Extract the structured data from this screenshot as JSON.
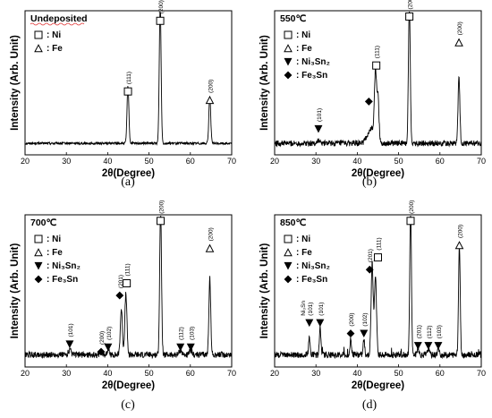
{
  "chart_data": [
    {
      "type": "line",
      "panel_label": "(a)",
      "sample": "Undeposited",
      "xlabel": "2θ(Degree)",
      "ylabel": "Intensity (Arb. Unit)",
      "xlim": [
        20,
        70
      ],
      "xticks": [
        20,
        30,
        40,
        50,
        60,
        70
      ],
      "legend": [
        {
          "symbol": "square",
          "label": ": Ni"
        },
        {
          "symbol": "triangle",
          "label": ": Fe"
        }
      ],
      "baseline": 0.08,
      "peaks": [
        {
          "x": 44.9,
          "y": 0.4,
          "w": 0.22
        },
        {
          "x": 52.7,
          "y": 0.97,
          "w": 0.22
        },
        {
          "x": 64.7,
          "y": 0.33,
          "w": 0.22
        }
      ],
      "markers": [
        {
          "x": 44.9,
          "y": 0.44,
          "symbol": "square",
          "hkl": "(111)"
        },
        {
          "x": 52.7,
          "y": 0.93,
          "symbol": "square",
          "hkl": "(200)"
        },
        {
          "x": 64.7,
          "y": 0.38,
          "symbol": "triangle",
          "hkl": "(200)"
        }
      ]
    },
    {
      "type": "line",
      "panel_label": "(b)",
      "sample": "550℃",
      "xlabel": "2θ(Degree)",
      "ylabel": "Intensity (Arb. Unit)",
      "xlim": [
        20,
        70
      ],
      "xticks": [
        20,
        30,
        40,
        50,
        60,
        70
      ],
      "legend": [
        {
          "symbol": "square",
          "label": ": Ni"
        },
        {
          "symbol": "triangle",
          "label": ": Fe"
        },
        {
          "symbol": "down-triangle",
          "label": ": Ni₃Sn₂"
        },
        {
          "symbol": "diamond",
          "label": ": Fe₃Sn"
        }
      ],
      "baseline": 0.08,
      "peaks": [
        {
          "x": 30.6,
          "y": 0.02,
          "w": 0.3
        },
        {
          "x": 43.4,
          "y": 0.1,
          "w": 0.9
        },
        {
          "x": 44.4,
          "y": 0.45,
          "w": 0.25
        },
        {
          "x": 45.0,
          "y": 0.3,
          "w": 0.25
        },
        {
          "x": 52.6,
          "y": 0.97,
          "w": 0.22
        },
        {
          "x": 64.6,
          "y": 0.45,
          "w": 0.22
        }
      ],
      "markers": [
        {
          "x": 30.6,
          "y": 0.18,
          "symbol": "down-triangle",
          "hkl": "(101)"
        },
        {
          "x": 42.8,
          "y": 0.37,
          "symbol": "diamond",
          "hkl": ""
        },
        {
          "x": 44.6,
          "y": 0.62,
          "symbol": "square",
          "hkl": "(111)"
        },
        {
          "x": 52.6,
          "y": 0.96,
          "symbol": "square",
          "hkl": "(200)"
        },
        {
          "x": 64.6,
          "y": 0.78,
          "symbol": "triangle",
          "hkl": "(200)"
        }
      ]
    },
    {
      "type": "line",
      "panel_label": "(c)",
      "sample": "700℃",
      "xlabel": "2θ(Degree)",
      "ylabel": "Intensity (Arb. Unit)",
      "xlim": [
        20,
        70
      ],
      "xticks": [
        20,
        30,
        40,
        50,
        60,
        70
      ],
      "legend": [
        {
          "symbol": "square",
          "label": ": Ni"
        },
        {
          "symbol": "triangle",
          "label": ": Fe"
        },
        {
          "symbol": "down-triangle",
          "label": ": Ni₃Sn₂"
        },
        {
          "symbol": "diamond",
          "label": ": Fe₃Sn"
        }
      ],
      "baseline": 0.08,
      "peaks": [
        {
          "x": 30.8,
          "y": 0.03,
          "w": 0.3
        },
        {
          "x": 38.4,
          "y": 0.02,
          "w": 0.3
        },
        {
          "x": 40.1,
          "y": 0.03,
          "w": 0.3
        },
        {
          "x": 43.3,
          "y": 0.3,
          "w": 0.25
        },
        {
          "x": 44.4,
          "y": 0.4,
          "w": 0.25
        },
        {
          "x": 52.8,
          "y": 0.97,
          "w": 0.22
        },
        {
          "x": 57.6,
          "y": 0.03,
          "w": 0.3
        },
        {
          "x": 60.1,
          "y": 0.03,
          "w": 0.3
        },
        {
          "x": 64.7,
          "y": 0.5,
          "w": 0.22
        }
      ],
      "markers": [
        {
          "x": 30.8,
          "y": 0.15,
          "symbol": "down-triangle",
          "hkl": "(101)"
        },
        {
          "x": 38.4,
          "y": 0.1,
          "symbol": "diamond",
          "hkl": "(200)"
        },
        {
          "x": 40.1,
          "y": 0.13,
          "symbol": "down-triangle",
          "hkl": "(102)"
        },
        {
          "x": 42.9,
          "y": 0.47,
          "symbol": "diamond",
          "hkl": "(201)"
        },
        {
          "x": 44.6,
          "y": 0.55,
          "symbol": "square",
          "hkl": "(111)"
        },
        {
          "x": 52.8,
          "y": 0.96,
          "symbol": "square",
          "hkl": "(200)"
        },
        {
          "x": 57.6,
          "y": 0.13,
          "symbol": "down-triangle",
          "hkl": "(112)"
        },
        {
          "x": 60.1,
          "y": 0.13,
          "symbol": "down-triangle",
          "hkl": "(103)"
        },
        {
          "x": 64.7,
          "y": 0.78,
          "symbol": "triangle",
          "hkl": "(200)"
        }
      ]
    },
    {
      "type": "line",
      "panel_label": "(d)",
      "sample": "850℃",
      "xlabel": "2θ(Degree)",
      "ylabel": "Intensity (Arb. Unit)",
      "xlim": [
        20,
        70
      ],
      "xticks": [
        20,
        30,
        40,
        50,
        60,
        70
      ],
      "legend": [
        {
          "symbol": "square",
          "label": ": Ni"
        },
        {
          "symbol": "triangle",
          "label": ": Fe"
        },
        {
          "symbol": "down-triangle",
          "label": ": Ni₃Sn₂"
        },
        {
          "symbol": "diamond",
          "label": ": Fe₃Sn"
        }
      ],
      "baseline": 0.08,
      "peaks": [
        {
          "x": 28.4,
          "y": 0.12,
          "w": 0.18
        },
        {
          "x": 31.0,
          "y": 0.18,
          "w": 0.18
        },
        {
          "x": 38.4,
          "y": 0.1,
          "w": 0.18
        },
        {
          "x": 41.6,
          "y": 0.1,
          "w": 0.18
        },
        {
          "x": 43.6,
          "y": 0.6,
          "w": 0.25
        },
        {
          "x": 44.4,
          "y": 0.52,
          "w": 0.25
        },
        {
          "x": 52.9,
          "y": 0.97,
          "w": 0.2
        },
        {
          "x": 54.7,
          "y": 0.05,
          "w": 0.2
        },
        {
          "x": 57.2,
          "y": 0.04,
          "w": 0.2
        },
        {
          "x": 59.6,
          "y": 0.04,
          "w": 0.2
        },
        {
          "x": 64.7,
          "y": 0.72,
          "w": 0.2
        }
      ],
      "markers": [
        {
          "x": 28.4,
          "y": 0.29,
          "symbol": "down-triangle",
          "hkl": "(101)",
          "hkl_prefix": "Ni₃Sn"
        },
        {
          "x": 31.0,
          "y": 0.29,
          "symbol": "down-triangle",
          "hkl": "(101)"
        },
        {
          "x": 38.4,
          "y": 0.22,
          "symbol": "diamond",
          "hkl": "(200)"
        },
        {
          "x": 41.6,
          "y": 0.22,
          "symbol": "down-triangle",
          "hkl": "(102)"
        },
        {
          "x": 43.0,
          "y": 0.64,
          "symbol": "diamond",
          "hkl": "(201)"
        },
        {
          "x": 45.0,
          "y": 0.72,
          "symbol": "square",
          "hkl": "(111)"
        },
        {
          "x": 52.9,
          "y": 0.96,
          "symbol": "square",
          "hkl": "(200)"
        },
        {
          "x": 54.7,
          "y": 0.14,
          "symbol": "down-triangle",
          "hkl": "(201)"
        },
        {
          "x": 57.2,
          "y": 0.14,
          "symbol": "down-triangle",
          "hkl": "(112)"
        },
        {
          "x": 59.6,
          "y": 0.14,
          "symbol": "down-triangle",
          "hkl": "(103)"
        },
        {
          "x": 64.7,
          "y": 0.8,
          "symbol": "triangle",
          "hkl": "(200)"
        }
      ]
    }
  ]
}
